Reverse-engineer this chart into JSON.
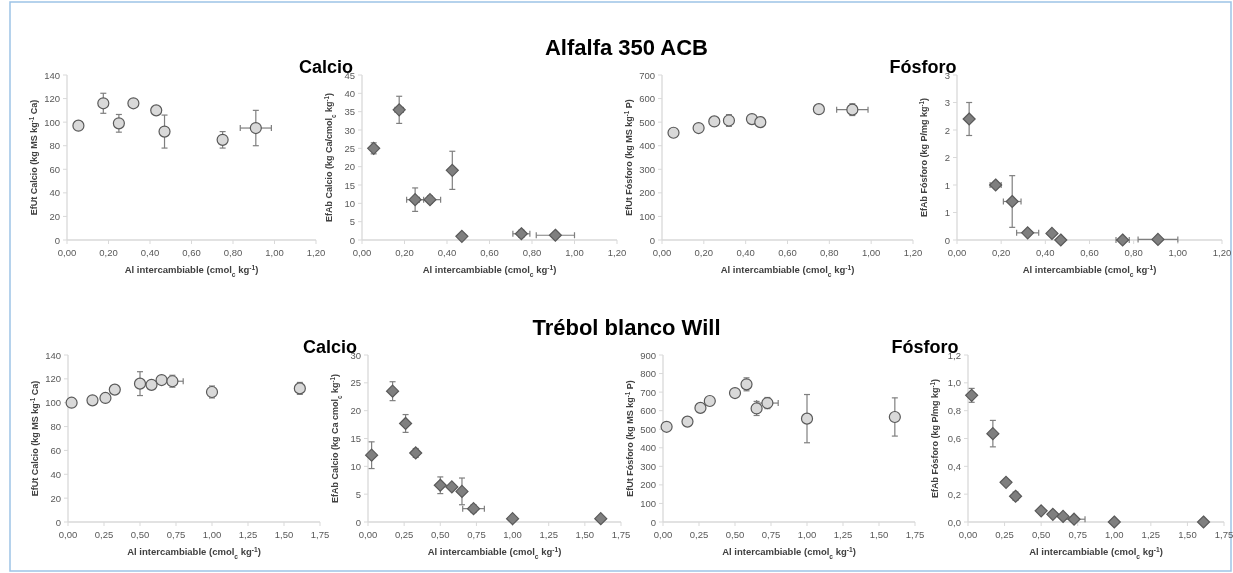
{
  "chart_data": [
    {
      "type": "scatter",
      "subtitle": "Calcio",
      "xlabel": "Al intercambiable (cmol$_{c}$ kg$^{-1}$)",
      "ylabel": "EfUt Calcio (kg MS kg$^{-1}$ Ca)",
      "x": [
        0.055,
        0.175,
        0.25,
        0.32,
        0.43,
        0.47,
        0.75,
        0.91
      ],
      "values": [
        97,
        116,
        99,
        116,
        110,
        92,
        85,
        95
      ],
      "errors": [
        null,
        8.5,
        7.5,
        2,
        null,
        14,
        7,
        15
      ],
      "xerrors": [
        null,
        null,
        null,
        null,
        null,
        null,
        null,
        0.075
      ],
      "color": "#d9d9d9",
      "marker": "circle",
      "xlim": [
        0,
        1.2
      ],
      "xticks": [
        {
          "value": 0,
          "label": "0,00"
        },
        {
          "value": 0.2,
          "label": "0,20"
        },
        {
          "value": 0.4,
          "label": "0,40"
        },
        {
          "value": 0.6,
          "label": "0,60"
        },
        {
          "value": 0.8,
          "label": "0,80"
        },
        {
          "value": 1,
          "label": "1,00"
        },
        {
          "value": 1.2,
          "label": "1,20"
        }
      ],
      "ylim": [
        0,
        140
      ],
      "yticks": [
        0,
        20,
        40,
        60,
        80,
        100,
        120,
        140
      ],
      "grid": false
    },
    {
      "type": "scatter",
      "title": "Alfalfa 350 ACB",
      "xlabel": "Al intercambiable (cmol$_{c}$ kg$^{-1}$)",
      "ylabel": "EfAb Calcio (kg Ca/cmol$_{c}$ kg$^{-1}$)",
      "x": [
        0.055,
        0.175,
        0.25,
        0.32,
        0.425,
        0.47,
        0.75,
        0.91
      ],
      "values": [
        25,
        35.5,
        11,
        11,
        19,
        1,
        1.7,
        1.3
      ],
      "errors": [
        1.5,
        3.7,
        3.2,
        1,
        5.2,
        null,
        1,
        null
      ],
      "xerrors": [
        null,
        0.02,
        0.04,
        0.05,
        null,
        null,
        0.04,
        0.09
      ],
      "color": "#7f7f7f",
      "marker": "diamond",
      "xlim": [
        0,
        1.2
      ],
      "xticks": [
        {
          "value": 0,
          "label": "0,00"
        },
        {
          "value": 0.2,
          "label": "0,20"
        },
        {
          "value": 0.4,
          "label": "0,40"
        },
        {
          "value": 0.6,
          "label": "0,60"
        },
        {
          "value": 0.8,
          "label": "0,80"
        },
        {
          "value": 1,
          "label": "1,00"
        },
        {
          "value": 1.2,
          "label": "1,20"
        }
      ],
      "ylim": [
        0,
        45
      ],
      "yticks": [
        0,
        5,
        10,
        15,
        20,
        25,
        30,
        35,
        40,
        45
      ],
      "grid": false
    },
    {
      "type": "scatter",
      "subtitle": "Fósforo",
      "xlabel": "Al intercambiable (cmol$_{c}$ kg$^{-1}$)",
      "ylabel": "EfUt Fósforo (kg MS kg$^{-1}$ P)",
      "x": [
        0.055,
        0.175,
        0.25,
        0.32,
        0.43,
        0.47,
        0.75,
        0.91
      ],
      "values": [
        455,
        475,
        503,
        507,
        513,
        500,
        555,
        553
      ],
      "errors": [
        null,
        null,
        null,
        25,
        null,
        null,
        null,
        25
      ],
      "xerrors": [
        null,
        null,
        null,
        null,
        null,
        null,
        null,
        0.075
      ],
      "color": "#d9d9d9",
      "marker": "circle",
      "xlim": [
        0,
        1.2
      ],
      "xticks": [
        {
          "value": 0,
          "label": "0,00"
        },
        {
          "value": 0.2,
          "label": "0,20"
        },
        {
          "value": 0.4,
          "label": "0,40"
        },
        {
          "value": 0.6,
          "label": "0,60"
        },
        {
          "value": 0.8,
          "label": "0,80"
        },
        {
          "value": 1,
          "label": "1,00"
        },
        {
          "value": 1.2,
          "label": "1,20"
        }
      ],
      "ylim": [
        0,
        700
      ],
      "yticks": [
        0,
        100,
        200,
        300,
        400,
        500,
        600,
        700
      ],
      "grid": false
    },
    {
      "type": "scatter",
      "xlabel": "Al intercambiable (cmol$_{c}$ kg$^{-1}$)",
      "ylabel": "EfAb Fósforo (kg P/mg kg$^{-1}$)",
      "x": [
        0.055,
        0.175,
        0.25,
        0.32,
        0.43,
        0.47,
        0.75,
        0.91
      ],
      "values": [
        2.2,
        1.0,
        0.7,
        0.13,
        0.12,
        0,
        0,
        0.01
      ],
      "errors": [
        0.3,
        null,
        0.47,
        null,
        0.03,
        null,
        null,
        null
      ],
      "xerrors": [
        null,
        0.025,
        0.04,
        0.05,
        null,
        null,
        0.03,
        0.09
      ],
      "color": "#7f7f7f",
      "marker": "diamond",
      "xlim": [
        0,
        1.2
      ],
      "xticks": [
        {
          "value": 0,
          "label": "0,00"
        },
        {
          "value": 0.2,
          "label": "0,20"
        },
        {
          "value": 0.4,
          "label": "0,40"
        },
        {
          "value": 0.6,
          "label": "0,60"
        },
        {
          "value": 0.8,
          "label": "0,80"
        },
        {
          "value": 1,
          "label": "1,00"
        },
        {
          "value": 1.2,
          "label": "1,20"
        }
      ],
      "ylim": [
        0,
        3
      ],
      "yticks": [
        0,
        {
          "value": 0.5,
          "label": "1"
        },
        1,
        {
          "value": 1.5,
          "label": "2"
        },
        2,
        {
          "value": 2.5,
          "label": "3"
        },
        3
      ],
      "grid": false
    },
    {
      "type": "scatter",
      "subtitle": "Calcio",
      "xlabel": "Al intercambiable (cmol$_{c}$ kg$^{-1}$)",
      "ylabel": "EfUt Calcio (kg MS kg$^{-1}$ Ca)",
      "x": [
        0.025,
        0.17,
        0.26,
        0.325,
        0.5,
        0.58,
        0.65,
        0.725,
        1.0,
        1.61
      ],
      "values": [
        100,
        102,
        104,
        111,
        116,
        115,
        119,
        118,
        109,
        112
      ],
      "errors": [
        null,
        null,
        null,
        null,
        10,
        null,
        null,
        5,
        5,
        5
      ],
      "xerrors": [
        null,
        null,
        null,
        null,
        null,
        null,
        null,
        0.075,
        null,
        null
      ],
      "color": "#d9d9d9",
      "marker": "circle",
      "xlim": [
        0,
        1.75
      ],
      "xticks": [
        {
          "value": 0,
          "label": "0,00"
        },
        {
          "value": 0.25,
          "label": "0,25"
        },
        {
          "value": 0.5,
          "label": "0,50"
        },
        {
          "value": 0.75,
          "label": "0,75"
        },
        {
          "value": 1,
          "label": "1,00"
        },
        {
          "value": 1.25,
          "label": "1,25"
        },
        {
          "value": 1.5,
          "label": "1,50"
        },
        {
          "value": 1.75,
          "label": "1,75"
        }
      ],
      "ylim": [
        0,
        140
      ],
      "yticks": [
        0,
        20,
        40,
        60,
        80,
        100,
        120,
        140
      ],
      "grid": false
    },
    {
      "type": "scatter",
      "title": "Trébol blanco Will",
      "xlabel": "Al intercambiable (cmol$_{c}$ kg$^{-1}$)",
      "ylabel": "EfAb Calcio (kg Ca cmol$_{c}$ kg$^{-1}$)",
      "x": [
        0.025,
        0.17,
        0.26,
        0.33,
        0.5,
        0.58,
        0.65,
        0.73,
        1.0,
        1.61
      ],
      "values": [
        12,
        23.5,
        17.7,
        12.4,
        6.6,
        6.3,
        5.5,
        2.4,
        0.6,
        0.6
      ],
      "errors": [
        2.4,
        1.7,
        1.6,
        0.8,
        1.5,
        null,
        2.4,
        0.7,
        null,
        null
      ],
      "xerrors": [
        null,
        null,
        null,
        null,
        null,
        null,
        null,
        0.075,
        null,
        null
      ],
      "color": "#7f7f7f",
      "marker": "diamond",
      "xlim": [
        0,
        1.75
      ],
      "xticks": [
        {
          "value": 0,
          "label": "0,00"
        },
        {
          "value": 0.25,
          "label": "0,25"
        },
        {
          "value": 0.5,
          "label": "0,50"
        },
        {
          "value": 0.75,
          "label": "0,75"
        },
        {
          "value": 1,
          "label": "1,00"
        },
        {
          "value": 1.25,
          "label": "1,25"
        },
        {
          "value": 1.5,
          "label": "1,50"
        },
        {
          "value": 1.75,
          "label": "1,75"
        }
      ],
      "ylim": [
        0,
        30
      ],
      "yticks": [
        0,
        5,
        10,
        15,
        20,
        25,
        30
      ],
      "grid": false
    },
    {
      "type": "scatter",
      "subtitle": "Fósforo",
      "xlabel": "Al intercambiable (cmol$_{c}$ kg$^{-1}$)",
      "ylabel": "EfUt Fósforo (kg MS kg$^{-1}$ P)",
      "x": [
        0.025,
        0.17,
        0.26,
        0.325,
        0.5,
        0.58,
        0.65,
        0.725,
        1.0,
        1.61
      ],
      "values": [
        513,
        541,
        615,
        652,
        695,
        742,
        612,
        641,
        557,
        566
      ],
      "errors": [
        null,
        null,
        null,
        null,
        null,
        35,
        38,
        30,
        130,
        103
      ],
      "xerrors": [
        null,
        null,
        null,
        null,
        null,
        null,
        null,
        0.075,
        null,
        null
      ],
      "color": "#d9d9d9",
      "marker": "circle",
      "xlim": [
        0,
        1.75
      ],
      "xticks": [
        {
          "value": 0,
          "label": "0,00"
        },
        {
          "value": 0.25,
          "label": "0,25"
        },
        {
          "value": 0.5,
          "label": "0,50"
        },
        {
          "value": 0.75,
          "label": "0,75"
        },
        {
          "value": 1,
          "label": "1,00"
        },
        {
          "value": 1.25,
          "label": "1,25"
        },
        {
          "value": 1.5,
          "label": "1,50"
        },
        {
          "value": 1.75,
          "label": "1,75"
        }
      ],
      "ylim": [
        0,
        900
      ],
      "yticks": [
        0,
        100,
        200,
        300,
        400,
        500,
        600,
        700,
        800,
        900
      ],
      "grid": false
    },
    {
      "type": "scatter",
      "xlabel": "Al intercambiable (cmol$_{c}$ kg$^{-1}$)",
      "ylabel": "EfAb Fósforo (kg P/mg kg$^{-1}$)",
      "x": [
        0.025,
        0.17,
        0.26,
        0.325,
        0.5,
        0.58,
        0.65,
        0.725,
        1.0,
        1.61
      ],
      "values": [
        0.91,
        0.635,
        0.285,
        0.185,
        0.08,
        0.055,
        0.04,
        0.02,
        0,
        0
      ],
      "errors": [
        0.05,
        0.095,
        null,
        0.03,
        0.02,
        null,
        null,
        null,
        null,
        null
      ],
      "xerrors": [
        null,
        null,
        null,
        null,
        null,
        null,
        null,
        0.075,
        null,
        null
      ],
      "color": "#7f7f7f",
      "marker": "diamond",
      "xlim": [
        0,
        1.75
      ],
      "xticks": [
        {
          "value": 0,
          "label": "0,00"
        },
        {
          "value": 0.25,
          "label": "0,25"
        },
        {
          "value": 0.5,
          "label": "0,50"
        },
        {
          "value": 0.75,
          "label": "0,75"
        },
        {
          "value": 1,
          "label": "1,00"
        },
        {
          "value": 1.25,
          "label": "1,25"
        },
        {
          "value": 1.5,
          "label": "1,50"
        },
        {
          "value": 1.75,
          "label": "1,75"
        }
      ],
      "ylim": [
        0,
        1.2
      ],
      "yticks": [
        {
          "value": 0,
          "label": "0,0"
        },
        {
          "value": 0.2,
          "label": "0,2"
        },
        {
          "value": 0.4,
          "label": "0,4"
        },
        {
          "value": 0.6,
          "label": "0,6"
        },
        {
          "value": 0.8,
          "label": "0,8"
        },
        {
          "value": 1,
          "label": "1,0"
        },
        {
          "value": 1.2,
          "label": "1,2"
        }
      ],
      "grid": false
    }
  ]
}
